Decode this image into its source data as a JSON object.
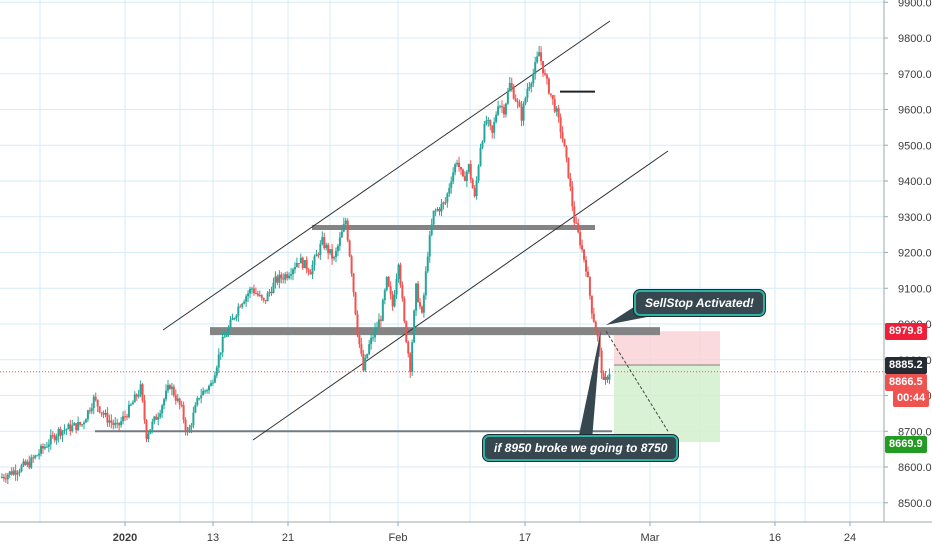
{
  "chart_data": {
    "type": "candlestick",
    "y_axis": {
      "ticks": [
        8500,
        8600,
        8700,
        8800,
        8900,
        9000,
        9100,
        9200,
        9300,
        9400,
        9500,
        9600,
        9700,
        9800,
        9900
      ],
      "ylim": [
        8430,
        9920
      ],
      "side": "right",
      "grid": true
    },
    "x_axis": {
      "ticks": [
        {
          "label": "2020",
          "bold": true
        },
        {
          "label": "13",
          "bold": false
        },
        {
          "label": "21",
          "bold": false
        },
        {
          "label": "Feb",
          "bold": false
        },
        {
          "label": "17",
          "bold": false
        },
        {
          "label": "Mar",
          "bold": false
        },
        {
          "label": "16",
          "bold": false
        },
        {
          "label": "24",
          "bold": false
        }
      ],
      "grid": true
    },
    "price_path": [
      [
        0,
        8570
      ],
      [
        5,
        8610
      ],
      [
        10,
        8700
      ],
      [
        14,
        8720
      ],
      [
        16,
        8790
      ],
      [
        18,
        8740
      ],
      [
        20,
        8710
      ],
      [
        22,
        8760
      ],
      [
        24,
        8820
      ],
      [
        25,
        8690
      ],
      [
        27,
        8750
      ],
      [
        29,
        8830
      ],
      [
        31,
        8760
      ],
      [
        32,
        8690
      ],
      [
        34,
        8800
      ],
      [
        36,
        8830
      ],
      [
        38,
        8950
      ],
      [
        41,
        9060
      ],
      [
        43,
        9100
      ],
      [
        45,
        9060
      ],
      [
        47,
        9120
      ],
      [
        49,
        9140
      ],
      [
        51,
        9180
      ],
      [
        53,
        9150
      ],
      [
        55,
        9230
      ],
      [
        57,
        9180
      ],
      [
        59,
        9290
      ],
      [
        60,
        9150
      ],
      [
        61,
        8980
      ],
      [
        62,
        8870
      ],
      [
        63,
        8940
      ],
      [
        65,
        9020
      ],
      [
        66,
        9120
      ],
      [
        67,
        9050
      ],
      [
        68,
        9180
      ],
      [
        69,
        9000
      ],
      [
        70,
        8880
      ],
      [
        71,
        9100
      ],
      [
        72,
        9020
      ],
      [
        73,
        9200
      ],
      [
        74,
        9310
      ],
      [
        76,
        9340
      ],
      [
        77,
        9410
      ],
      [
        78,
        9460
      ],
      [
        79,
        9400
      ],
      [
        80,
        9440
      ],
      [
        81,
        9350
      ],
      [
        82,
        9500
      ],
      [
        83,
        9570
      ],
      [
        84,
        9530
      ],
      [
        85,
        9620
      ],
      [
        86,
        9600
      ],
      [
        87,
        9670
      ],
      [
        88,
        9630
      ],
      [
        89,
        9580
      ],
      [
        90,
        9660
      ],
      [
        91,
        9700
      ],
      [
        92,
        9760
      ],
      [
        93,
        9690
      ],
      [
        94,
        9640
      ],
      [
        95,
        9590
      ],
      [
        96,
        9520
      ],
      [
        97,
        9420
      ],
      [
        98,
        9290
      ],
      [
        99,
        9230
      ],
      [
        100,
        9160
      ],
      [
        101,
        9040
      ],
      [
        102,
        8960
      ],
      [
        103,
        8830
      ],
      [
        104,
        8866.5
      ]
    ],
    "current_price": "8866.5",
    "price_labels": [
      {
        "text": "8979.8",
        "bg": "#ef1f3a"
      },
      {
        "text": "8885.2",
        "bg": "#262b33"
      },
      {
        "text": "8866.5",
        "bg": "#ef5350"
      },
      {
        "text": "00:44",
        "bg": "#ef5350"
      },
      {
        "text": "8669.9",
        "bg": "#229c22"
      }
    ],
    "horizontal_levels": [
      9270,
      8980,
      8700,
      9650
    ],
    "position": {
      "entry": 8885.2,
      "stop": 8979.8,
      "target": 8669.9
    },
    "colors": {
      "up": "#26a69a",
      "down": "#ef5350",
      "grid": "#d6ecf7",
      "level": "#848484",
      "stop_zone": "#f9d4d6",
      "target_zone": "#d5efd0"
    }
  },
  "annotations": {
    "callout_top": "SellStop Activated!",
    "callout_bottom": "if 8950 broke we going to 8750"
  }
}
